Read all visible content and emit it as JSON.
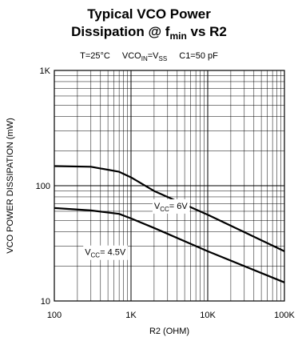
{
  "chart_data": {
    "type": "line",
    "title_line1": "Typical VCO Power",
    "title_line2_main": "Dissipation @ f",
    "title_line2_sub": "min",
    "title_line2_tail": " vs R2",
    "conditions": {
      "temp": "T=25°C",
      "vco_main": "VCO",
      "vco_sub": "IN",
      "vco_eq": "=V",
      "vss_sub": "SS",
      "cap": "C1=50 pF"
    },
    "xlabel": "R2 (OHM)",
    "ylabel": "VCO POWER DISSIPATION (mW)",
    "x_scale": "log",
    "y_scale": "log",
    "xlim": [
      100,
      100000
    ],
    "ylim": [
      10,
      1000
    ],
    "x_ticks": [
      "100",
      "1K",
      "10K",
      "100K"
    ],
    "y_ticks": [
      "10",
      "100",
      "1K"
    ],
    "grid": true,
    "series": [
      {
        "name": "V",
        "name_sub": "CC",
        "name_tail": "= 6V",
        "label_x": 2000,
        "label_y": 63,
        "x": [
          100,
          300,
          700,
          1000,
          2000,
          10000,
          100000
        ],
        "y": [
          148,
          146,
          132,
          118,
          90,
          56,
          27
        ]
      },
      {
        "name": "V",
        "name_sub": "CC",
        "name_tail": "= 4.5V",
        "label_x": 250,
        "label_y": 25,
        "x": [
          100,
          300,
          700,
          1000,
          2000,
          10000,
          100000
        ],
        "y": [
          64,
          61,
          57,
          52,
          43,
          27,
          14.5
        ]
      }
    ]
  }
}
